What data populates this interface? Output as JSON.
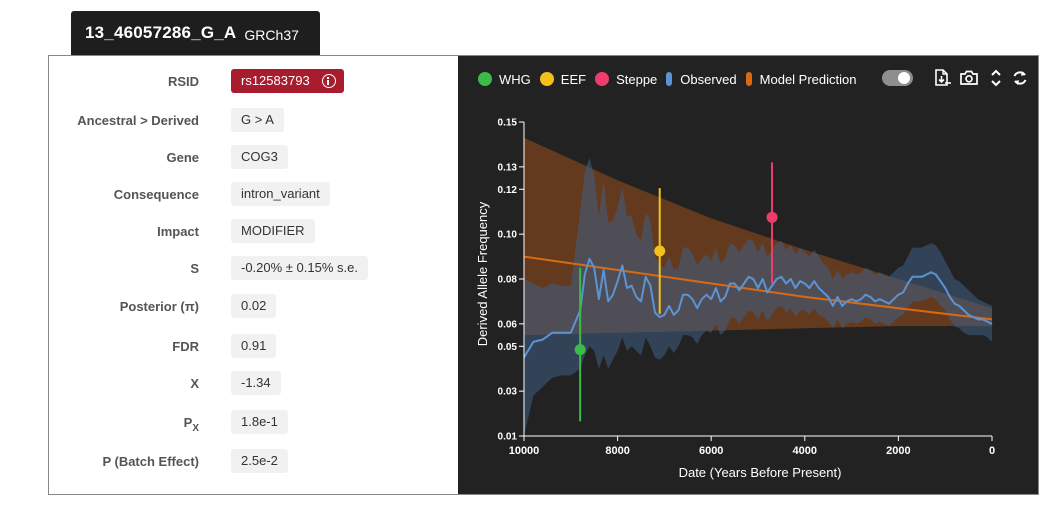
{
  "header": {
    "variant": "13_46057286_G_A",
    "build": "GRCh37"
  },
  "fields": [
    {
      "label": "RSID",
      "value": "rs12583793"
    },
    {
      "label": "Ancestral > Derived",
      "value": "G > A"
    },
    {
      "label": "Gene",
      "value": "COG3"
    },
    {
      "label": "Consequence",
      "value": "intron_variant"
    },
    {
      "label": "Impact",
      "value": "MODIFIER"
    },
    {
      "label": "S",
      "value": "-0.20% ± 0.15% s.e."
    },
    {
      "label": "Posterior (π)",
      "value": "0.02"
    },
    {
      "label": "FDR",
      "value": "0.91"
    },
    {
      "label": "X",
      "value": "-1.34"
    },
    {
      "label": "P",
      "label_sub": "X",
      "value": "1.8e-1"
    },
    {
      "label": "P (Batch Effect)",
      "value": "2.5e-2"
    }
  ],
  "colors": {
    "rsid_bg": "#a81c2e",
    "whg": "#3dbb48",
    "eef": "#f2c21b",
    "steppe": "#ee3d6b",
    "observed": "#5b93d3",
    "model": "#d86a14",
    "plot_bg": "#222222"
  },
  "toolbar": {
    "download_icon": "download-icon",
    "camera_icon": "camera-icon",
    "expand_icon": "expand-icon",
    "refresh_icon": "refresh-icon"
  },
  "chart_data": {
    "type": "line",
    "xlabel": "Date (Years Before Present)",
    "ylabel": "Derived Allele Frequency",
    "xlim": [
      10000,
      0
    ],
    "ylim": [
      0.01,
      0.15
    ],
    "x_ticks": [
      10000,
      8000,
      6000,
      4000,
      2000,
      0
    ],
    "y_ticks": [
      0.01,
      0.03,
      0.05,
      0.06,
      0.08,
      0.1,
      0.12,
      0.13,
      0.15
    ],
    "legend": [
      "WHG",
      "EEF",
      "Steppe",
      "Observed",
      "Model Prediction"
    ],
    "legend_position": "top-left",
    "observed": {
      "x": [
        10000,
        9800,
        9600,
        9400,
        9200,
        9000,
        8800,
        8700,
        8600,
        8500,
        8400,
        8300,
        8200,
        8100,
        8000,
        7900,
        7800,
        7700,
        7600,
        7500,
        7400,
        7300,
        7200,
        7100,
        7000,
        6900,
        6800,
        6700,
        6600,
        6500,
        6400,
        6300,
        6200,
        6100,
        6000,
        5900,
        5800,
        5700,
        5600,
        5500,
        5400,
        5300,
        5200,
        5100,
        5000,
        4900,
        4800,
        4700,
        4600,
        4500,
        4400,
        4300,
        4200,
        4100,
        4000,
        3900,
        3800,
        3700,
        3600,
        3500,
        3400,
        3300,
        3200,
        3100,
        3000,
        2900,
        2800,
        2700,
        2600,
        2500,
        2400,
        2300,
        2200,
        2100,
        2000,
        1900,
        1800,
        1700,
        1600,
        1500,
        1400,
        1300,
        1200,
        1100,
        1000,
        900,
        800,
        700,
        600,
        500,
        400,
        300,
        200,
        100,
        0
      ],
      "value": [
        0.045,
        0.052,
        0.053,
        0.056,
        0.056,
        0.056,
        0.066,
        0.082,
        0.089,
        0.085,
        0.071,
        0.084,
        0.07,
        0.073,
        0.079,
        0.086,
        0.076,
        0.077,
        0.072,
        0.07,
        0.081,
        0.077,
        0.065,
        0.063,
        0.064,
        0.068,
        0.064,
        0.066,
        0.073,
        0.073,
        0.071,
        0.067,
        0.071,
        0.073,
        0.071,
        0.076,
        0.07,
        0.072,
        0.078,
        0.078,
        0.075,
        0.078,
        0.081,
        0.08,
        0.076,
        0.08,
        0.074,
        0.077,
        0.08,
        0.081,
        0.078,
        0.08,
        0.076,
        0.079,
        0.078,
        0.076,
        0.079,
        0.076,
        0.074,
        0.072,
        0.068,
        0.072,
        0.068,
        0.07,
        0.071,
        0.07,
        0.071,
        0.073,
        0.072,
        0.07,
        0.071,
        0.07,
        0.069,
        0.071,
        0.073,
        0.074,
        0.078,
        0.081,
        0.081,
        0.081,
        0.082,
        0.083,
        0.082,
        0.079,
        0.076,
        0.072,
        0.069,
        0.068,
        0.066,
        0.064,
        0.063,
        0.062,
        0.062,
        0.061,
        0.06
      ],
      "lower": [
        0.01,
        0.028,
        0.032,
        0.036,
        0.037,
        0.037,
        0.04,
        0.046,
        0.05,
        0.048,
        0.04,
        0.046,
        0.04,
        0.044,
        0.048,
        0.054,
        0.048,
        0.05,
        0.048,
        0.046,
        0.054,
        0.05,
        0.045,
        0.044,
        0.046,
        0.05,
        0.047,
        0.05,
        0.055,
        0.055,
        0.054,
        0.051,
        0.055,
        0.057,
        0.056,
        0.06,
        0.055,
        0.057,
        0.062,
        0.063,
        0.06,
        0.063,
        0.066,
        0.065,
        0.062,
        0.066,
        0.061,
        0.064,
        0.067,
        0.068,
        0.065,
        0.067,
        0.063,
        0.066,
        0.066,
        0.064,
        0.067,
        0.064,
        0.063,
        0.061,
        0.058,
        0.062,
        0.058,
        0.06,
        0.061,
        0.06,
        0.061,
        0.063,
        0.062,
        0.06,
        0.061,
        0.06,
        0.059,
        0.061,
        0.063,
        0.064,
        0.067,
        0.07,
        0.07,
        0.07,
        0.071,
        0.072,
        0.071,
        0.068,
        0.066,
        0.062,
        0.059,
        0.058,
        0.056,
        0.055,
        0.055,
        0.055,
        0.055,
        0.054,
        0.052
      ],
      "upper": [
        0.08,
        0.078,
        0.076,
        0.078,
        0.077,
        0.077,
        0.11,
        0.128,
        0.134,
        0.126,
        0.108,
        0.124,
        0.105,
        0.106,
        0.112,
        0.121,
        0.108,
        0.108,
        0.1,
        0.097,
        0.11,
        0.106,
        0.09,
        0.086,
        0.085,
        0.09,
        0.084,
        0.085,
        0.094,
        0.094,
        0.091,
        0.086,
        0.089,
        0.091,
        0.088,
        0.094,
        0.087,
        0.089,
        0.096,
        0.095,
        0.092,
        0.095,
        0.098,
        0.097,
        0.092,
        0.096,
        0.09,
        0.093,
        0.096,
        0.097,
        0.093,
        0.095,
        0.091,
        0.094,
        0.092,
        0.09,
        0.093,
        0.09,
        0.087,
        0.085,
        0.08,
        0.084,
        0.08,
        0.082,
        0.083,
        0.082,
        0.083,
        0.085,
        0.084,
        0.082,
        0.083,
        0.082,
        0.081,
        0.083,
        0.085,
        0.086,
        0.09,
        0.094,
        0.094,
        0.094,
        0.095,
        0.096,
        0.095,
        0.092,
        0.088,
        0.084,
        0.08,
        0.079,
        0.077,
        0.075,
        0.073,
        0.071,
        0.07,
        0.069,
        0.068
      ]
    },
    "model": {
      "x": [
        10000,
        8000,
        6000,
        4000,
        2000,
        0
      ],
      "value": [
        0.09,
        0.084,
        0.078,
        0.072,
        0.067,
        0.062
      ],
      "lower": [
        0.055,
        0.056,
        0.057,
        0.058,
        0.059,
        0.059
      ],
      "upper": [
        0.143,
        0.124,
        0.107,
        0.093,
        0.08,
        0.067
      ]
    },
    "points": [
      {
        "name": "WHG",
        "x": 8800,
        "y": 0.0485,
        "lower": 0.0165,
        "upper": 0.085
      },
      {
        "name": "EEF",
        "x": 7100,
        "y": 0.0925,
        "lower": 0.0645,
        "upper": 0.1205
      },
      {
        "name": "Steppe",
        "x": 4700,
        "y": 0.1075,
        "lower": 0.078,
        "upper": 0.132
      }
    ]
  }
}
